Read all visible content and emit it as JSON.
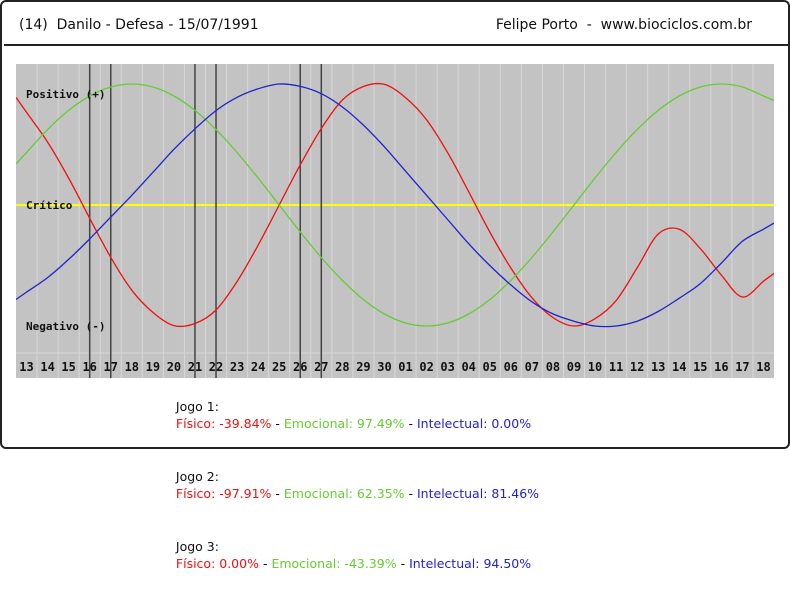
{
  "header": {
    "left": "(14)  Danilo - Defesa - 15/07/1991",
    "right": "Felipe Porto  -  www.biociclos.com.br"
  },
  "colors": {
    "fisico": "#ee1111",
    "emocional": "#66cc33",
    "intelectual": "#2222cc",
    "critico": "#ffff00",
    "background": "#c3c3c3",
    "grid": "#d7d7d7",
    "games": "#444444",
    "text": "#111111"
  },
  "chart_data": {
    "type": "line",
    "x": [
      "13",
      "14",
      "15",
      "16",
      "17",
      "18",
      "19",
      "20",
      "21",
      "22",
      "23",
      "24",
      "25",
      "26",
      "27",
      "28",
      "29",
      "30",
      "01",
      "02",
      "03",
      "04",
      "05",
      "06",
      "07",
      "08",
      "09",
      "10",
      "11",
      "12",
      "13",
      "14",
      "15",
      "16",
      "17",
      "18"
    ],
    "y_labels": {
      "positive": "Positivo (+)",
      "critical": "Crítico",
      "negative": "Negativo (-)"
    },
    "ylim": [
      -100,
      100
    ],
    "series": [
      {
        "name": "Físico",
        "values": [
          76.6,
          52.0,
          22.3,
          -11.0,
          -43.3,
          -70.4,
          -88.8,
          -99.7,
          -97.9,
          -86.8,
          -63.2,
          -33.2,
          0.0,
          33.2,
          63.2,
          86.8,
          97.9,
          99.7,
          88.8,
          70.4,
          43.3,
          11.0,
          -22.3,
          -52.0,
          -76.6,
          -93.0,
          -100.0,
          -94.0,
          -79.0,
          -52.0,
          -24.0,
          -20.0,
          -36.0,
          -58.0,
          -76.0,
          -63.0
        ]
      },
      {
        "name": "Emocional",
        "values": [
          43.4,
          62.3,
          78.2,
          90.1,
          97.5,
          100.0,
          97.5,
          90.1,
          78.2,
          62.3,
          43.4,
          22.3,
          0.0,
          -22.3,
          -43.4,
          -62.3,
          -78.2,
          -90.1,
          -97.5,
          -100.0,
          -97.5,
          -90.1,
          -78.2,
          -62.3,
          -43.4,
          -22.3,
          0.0,
          22.3,
          43.4,
          62.3,
          78.2,
          90.1,
          97.5,
          100.0,
          97.5,
          90.1
        ]
      },
      {
        "name": "Intelectual",
        "values": [
          -72.0,
          -60.0,
          -45.0,
          -28.0,
          -10.0,
          8.0,
          27.0,
          46.0,
          63.0,
          78.0,
          89.0,
          96.0,
          100.0,
          98.0,
          92.0,
          81.0,
          66.0,
          48.0,
          28.0,
          8.0,
          -12.0,
          -32.0,
          -50.0,
          -66.0,
          -80.0,
          -90.0,
          -96.0,
          -100.0,
          -100.0,
          -96.0,
          -88.0,
          -77.0,
          -65.0,
          -48.0,
          -30.0,
          -20.0
        ]
      }
    ],
    "games": [
      {
        "label": "Jogo 1",
        "position": 3.5
      },
      {
        "label": "Jogo 1",
        "position": 4.5
      },
      {
        "label": "Jogo 2",
        "position": 8.5
      },
      {
        "label": "Jogo 2",
        "position": 9.5
      },
      {
        "label": "Jogo 3",
        "position": 13.5
      },
      {
        "label": "Jogo 3",
        "position": 14.5
      }
    ]
  },
  "stats": [
    {
      "jogo": "Jogo 1:",
      "fisico": "Físico: -39.84%",
      "emocional": "Emocional: 97.49%",
      "intelectual": "Intelectual: 0.00%"
    },
    {
      "jogo": "Jogo 2:",
      "fisico": "Físico: -97.91%",
      "emocional": "Emocional: 62.35%",
      "intelectual": "Intelectual: 81.46%"
    },
    {
      "jogo": "Jogo 3:",
      "fisico": "Físico: 0.00%",
      "emocional": "Emocional: -43.39%",
      "intelectual": "Intelectual: 94.50%"
    }
  ],
  "separator": " - "
}
